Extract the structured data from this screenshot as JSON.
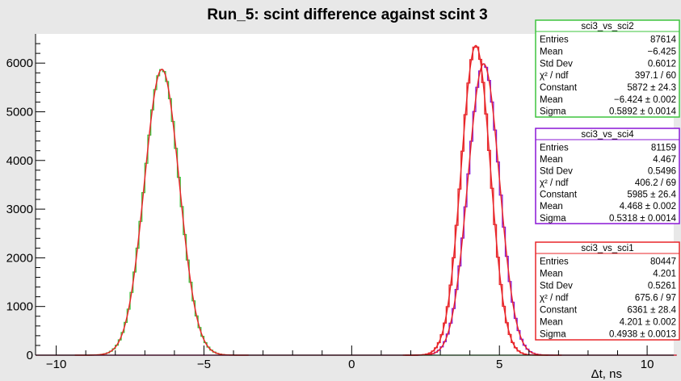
{
  "chart_data": {
    "type": "histogram",
    "title": "Run_5: scint difference against scint 3",
    "xlabel": "Δt, ns",
    "ylabel": "",
    "xlim": [
      -10.7,
      10.9
    ],
    "ylim": [
      0,
      6600
    ],
    "x_ticks": [
      -10,
      -5,
      0,
      5,
      10
    ],
    "y_ticks": [
      0,
      1000,
      2000,
      3000,
      4000,
      5000,
      6000
    ],
    "grid": false,
    "background": "#e8e8e8",
    "series": [
      {
        "name": "sci3_vs_sci2",
        "color": "#3ec43e",
        "fit_color": "#e8262a",
        "constant": 5872,
        "mean": -6.424,
        "sigma": 0.5892
      },
      {
        "name": "sci3_vs_sci4",
        "color": "#8a17d6",
        "fit_color": "#e8262a",
        "constant": 5985,
        "mean": 4.468,
        "sigma": 0.5318
      },
      {
        "name": "sci3_vs_sci1",
        "color": "#e8262a",
        "fit_color": "#e8262a",
        "constant": 6361,
        "mean": 4.201,
        "sigma": 0.4938
      }
    ],
    "stat_boxes": [
      {
        "name": "sci3_vs_sci2",
        "border_color": "#3ec43e",
        "rows": [
          [
            "Entries",
            "87614"
          ],
          [
            "Mean",
            "−6.425"
          ],
          [
            "Std Dev",
            "0.6012"
          ],
          [
            "χ² / ndf",
            "397.1 / 60"
          ],
          [
            "Constant",
            "5872 ± 24.3"
          ],
          [
            "Mean",
            "−6.424 ± 0.002"
          ],
          [
            "Sigma",
            "0.5892 ± 0.0014"
          ]
        ]
      },
      {
        "name": "sci3_vs_sci4",
        "border_color": "#8a17d6",
        "rows": [
          [
            "Entries",
            "81159"
          ],
          [
            "Mean",
            "4.467"
          ],
          [
            "Std Dev",
            "0.5496"
          ],
          [
            "χ² / ndf",
            "406.2 / 69"
          ],
          [
            "Constant",
            "5985 ± 26.4"
          ],
          [
            "Mean",
            "4.468 ± 0.002"
          ],
          [
            "Sigma",
            "0.5318 ± 0.0014"
          ]
        ]
      },
      {
        "name": "sci3_vs_sci1",
        "border_color": "#e8262a",
        "rows": [
          [
            "Entries",
            "80447"
          ],
          [
            "Mean",
            "4.201"
          ],
          [
            "Std Dev",
            "0.5261"
          ],
          [
            "χ² / ndf",
            "675.6 / 97"
          ],
          [
            "Constant",
            "6361 ± 28.4"
          ],
          [
            "Mean",
            "4.201 ± 0.002"
          ],
          [
            "Sigma",
            "0.4938 ± 0.0013"
          ]
        ]
      }
    ]
  }
}
